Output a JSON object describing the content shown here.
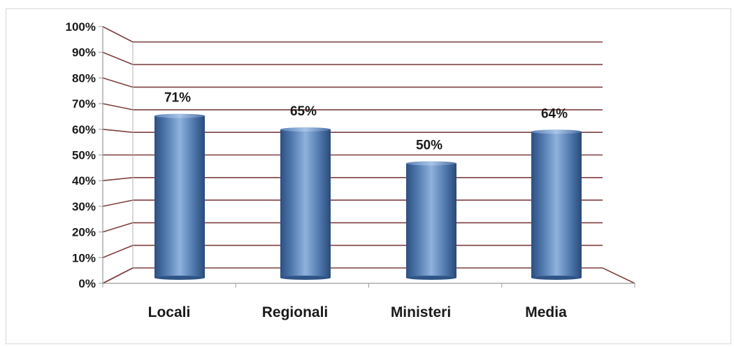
{
  "chart_data": {
    "type": "bar",
    "categories": [
      "Locali",
      "Regionali",
      "Ministeri",
      "Media"
    ],
    "values": [
      71,
      65,
      50,
      64
    ],
    "data_labels": [
      "71%",
      "65%",
      "50%",
      "64%"
    ],
    "title": "",
    "xlabel": "",
    "ylabel": "",
    "ylim": [
      0,
      100
    ],
    "y_ticks": [
      "0%",
      "10%",
      "20%",
      "30%",
      "40%",
      "50%",
      "60%",
      "70%",
      "80%",
      "90%",
      "100%"
    ],
    "grid": true,
    "legend": "none",
    "bar_color": "#4f81bd",
    "grid_color": "#7f3f3f"
  }
}
